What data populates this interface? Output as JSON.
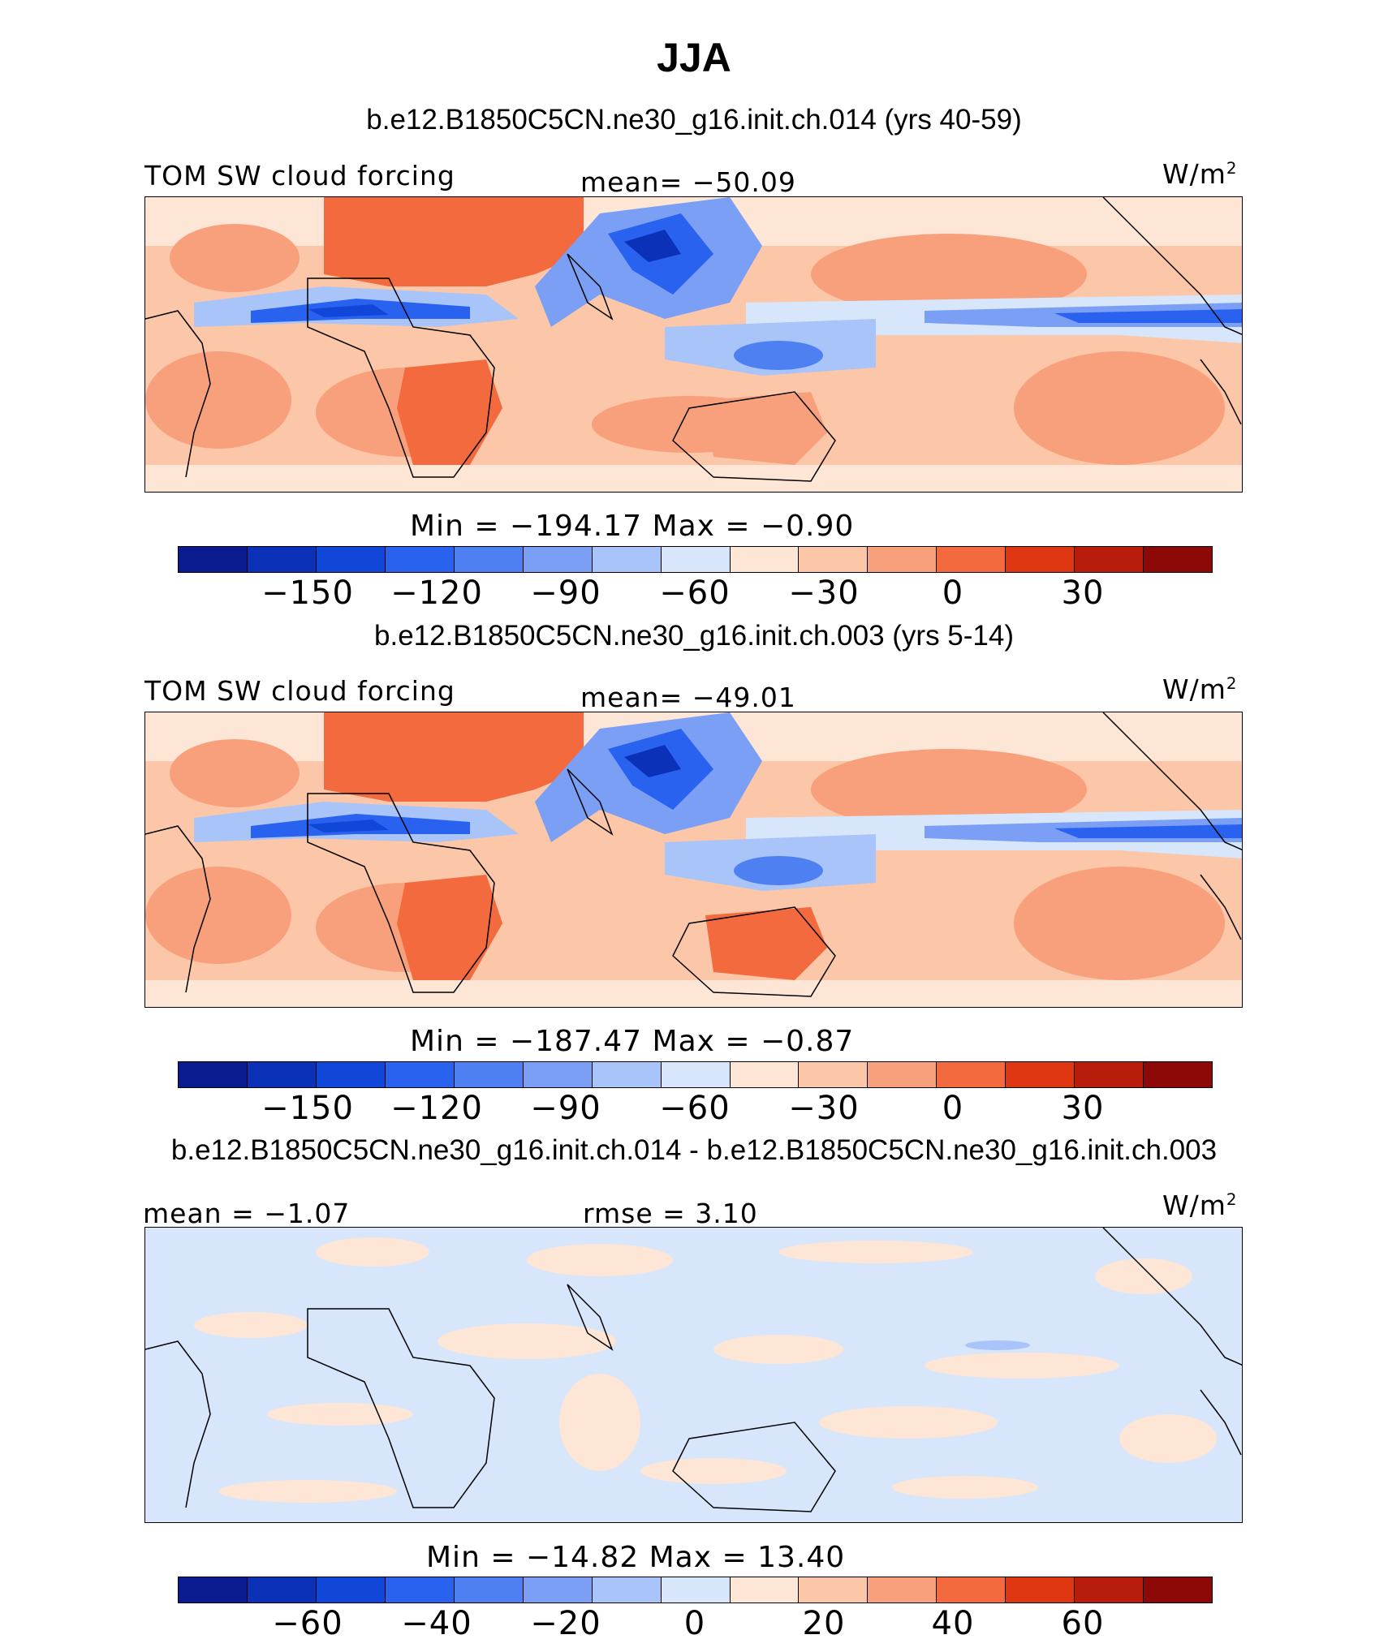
{
  "title": "JJA",
  "panels": [
    {
      "title": "b.e12.B1850C5CN.ne30_g16.init.ch.014 (yrs 40-59)",
      "left_label": "TOM SW cloud forcing",
      "center_label": "mean= −50.09",
      "units": "W/m",
      "units_sup": "2",
      "minmax": "Min = −194.17 Max = −0.90",
      "ticks": [
        "−150",
        "−120",
        "−90",
        "−60",
        "−30",
        "0",
        "30"
      ]
    },
    {
      "title": "b.e12.B1850C5CN.ne30_g16.init.ch.003 (yrs 5-14)",
      "left_label": "TOM SW cloud forcing",
      "center_label": "mean= −49.01",
      "units": "W/m",
      "units_sup": "2",
      "minmax": "Min = −187.47 Max = −0.87",
      "ticks": [
        "−150",
        "−120",
        "−90",
        "−60",
        "−30",
        "0",
        "30"
      ]
    },
    {
      "title": "b.e12.B1850C5CN.ne30_g16.init.ch.014 - b.e12.B1850C5CN.ne30_g16.init.ch.003",
      "left_label": "mean = −1.07",
      "center_label": "rmse = 3.10",
      "units": "W/m",
      "units_sup": "2",
      "minmax": "Min = −14.82 Max = 13.40",
      "ticks": [
        "−60",
        "−40",
        "−20",
        "0",
        "20",
        "40",
        "60"
      ]
    }
  ],
  "colors": {
    "palette": [
      "#0a1a8f",
      "#0b31b8",
      "#1147d8",
      "#2a62f0",
      "#4f80f2",
      "#7a9ff4",
      "#a9c4f8",
      "#d7e6fb",
      "#fde6d6",
      "#fcc7a8",
      "#f8a07c",
      "#f26a3e",
      "#df3612",
      "#b71d0a",
      "#8d0908"
    ],
    "ocean_mid": "#fcc7a8",
    "diff_base": "#d7e6fb",
    "diff_pos": "#fde6d6"
  },
  "chart_data": [
    {
      "type": "heatmap",
      "title": "b.e12.B1850C5CN.ne30_g16.init.ch.014 (yrs 40-59)",
      "variable": "TOM SW cloud forcing",
      "units": "W/m2",
      "mean": -50.09,
      "min": -194.17,
      "max": -0.9,
      "colorbar_levels": [
        -150,
        -120,
        -90,
        -60,
        -30,
        0,
        30
      ]
    },
    {
      "type": "heatmap",
      "title": "b.e12.B1850C5CN.ne30_g16.init.ch.003 (yrs 5-14)",
      "variable": "TOM SW cloud forcing",
      "units": "W/m2",
      "mean": -49.01,
      "min": -187.47,
      "max": -0.87,
      "colorbar_levels": [
        -150,
        -120,
        -90,
        -60,
        -30,
        0,
        30
      ]
    },
    {
      "type": "heatmap",
      "title": "b.e12.B1850C5CN.ne30_g16.init.ch.014 - b.e12.B1850C5CN.ne30_g16.init.ch.003",
      "units": "W/m2",
      "mean": -1.07,
      "rmse": 3.1,
      "min": -14.82,
      "max": 13.4,
      "colorbar_levels": [
        -60,
        -40,
        -20,
        0,
        20,
        40,
        60
      ]
    }
  ]
}
